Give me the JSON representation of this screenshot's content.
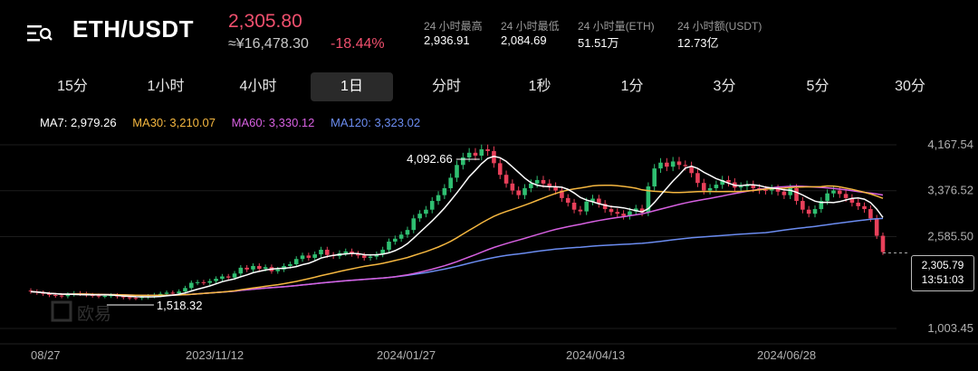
{
  "header": {
    "pair": "ETH/USDT",
    "last_price": "2,305.80",
    "cny_price": "≈¥16,478.30",
    "change_pct": "-18.44%",
    "stats": [
      {
        "label": "24 小时最高",
        "value": "2,936.91"
      },
      {
        "label": "24 小时最低",
        "value": "2,084.69"
      },
      {
        "label": "24 小时量(ETH)",
        "value": "51.51万"
      },
      {
        "label": "24 小时额(USDT)",
        "value": "12.73亿"
      }
    ]
  },
  "tabs": [
    "15分",
    "1小时",
    "4小时",
    "1日",
    "分时",
    "1秒",
    "1分",
    "3分",
    "5分",
    "30分"
  ],
  "active_tab": "1日",
  "ma_legend": [
    {
      "label": "MA7: 2,979.26",
      "color": "#ffffff"
    },
    {
      "label": "MA30: 3,210.07",
      "color": "#f5b740"
    },
    {
      "label": "MA60: 3,330.12",
      "color": "#d660e0"
    },
    {
      "label": "MA120: 3,323.02",
      "color": "#6b8cf0"
    }
  ],
  "watermark": "欧易",
  "price_tag": {
    "price": "2,305.79",
    "countdown": "13:51:03"
  },
  "chart_data": {
    "type": "candlestick",
    "y_axis_labels": [
      "4,167.54",
      "3,376.52",
      "2,585.50",
      "1,003.45"
    ],
    "y_axis_values": [
      4167.54,
      3376.52,
      2585.5,
      1003.45
    ],
    "x_axis_labels": [
      "08/27",
      "2023/11/12",
      "2024/01/27",
      "2024/04/13",
      "2024/06/28"
    ],
    "annotations": {
      "max": "4,092.66",
      "min": "1,518.32"
    },
    "colors": {
      "up": "#2fbf71",
      "down": "#e8405a",
      "ma7": "#ffffff",
      "ma30": "#f5b740",
      "ma60": "#d660e0",
      "ma120": "#6b8cf0"
    },
    "close_series": [
      1640,
      1620,
      1600,
      1580,
      1570,
      1560,
      1590,
      1610,
      1600,
      1580,
      1570,
      1560,
      1565,
      1575,
      1555,
      1540,
      1530,
      1528,
      1545,
      1560,
      1580,
      1600,
      1620,
      1610,
      1640,
      1700,
      1790,
      1800,
      1790,
      1820,
      1860,
      1900,
      1880,
      1950,
      2050,
      2020,
      2080,
      2030,
      2060,
      1990,
      2020,
      2080,
      2110,
      2200,
      2260,
      2220,
      2280,
      2360,
      2270,
      2250,
      2300,
      2330,
      2290,
      2260,
      2220,
      2240,
      2280,
      2360,
      2500,
      2550,
      2620,
      2700,
      2900,
      2980,
      3050,
      3200,
      3300,
      3420,
      3600,
      3820,
      3950,
      4030,
      3980,
      4090,
      4060,
      3850,
      3650,
      3500,
      3380,
      3300,
      3420,
      3500,
      3560,
      3500,
      3450,
      3380,
      3250,
      3170,
      3050,
      3020,
      3190,
      3240,
      3150,
      3060,
      3010,
      2980,
      2940,
      3020,
      3070,
      3000,
      3450,
      3760,
      3860,
      3790,
      3880,
      3820,
      3800,
      3680,
      3510,
      3380,
      3420,
      3480,
      3560,
      3520,
      3430,
      3450,
      3480,
      3420,
      3390,
      3380,
      3410,
      3360,
      3300,
      3420,
      3200,
      3050,
      2980,
      3060,
      3200,
      3330,
      3380,
      3320,
      3250,
      3170,
      3110,
      3060,
      2900,
      2600,
      2320
    ]
  }
}
